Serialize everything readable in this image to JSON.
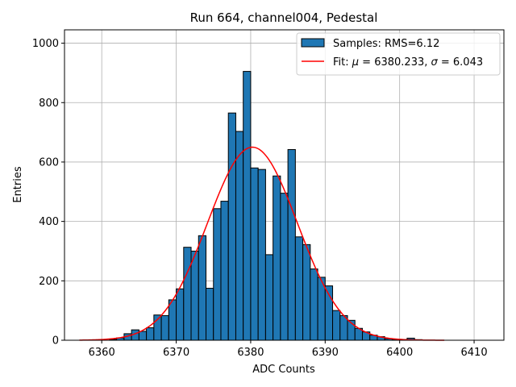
{
  "chart_data": {
    "type": "bar",
    "title": "Run 664, channel004, Pedestal",
    "xlabel": "ADC Counts",
    "ylabel": "Entries",
    "xlim": [
      6355,
      6414
    ],
    "ylim": [
      0,
      1045
    ],
    "xticks": [
      6360,
      6370,
      6380,
      6390,
      6400,
      6410
    ],
    "yticks": [
      0,
      200,
      400,
      600,
      800,
      1000
    ],
    "grid": true,
    "legend_position": "top-right",
    "bin_width": 1,
    "histogram": {
      "name": "Samples: RMS=6.12",
      "color": "#1f77b4",
      "edge_color": "#000000",
      "bin_left": [
        6361,
        6362,
        6363,
        6364,
        6365,
        6366,
        6367,
        6368,
        6369,
        6370,
        6371,
        6372,
        6373,
        6374,
        6375,
        6376,
        6377,
        6378,
        6379,
        6380,
        6381,
        6382,
        6383,
        6384,
        6385,
        6386,
        6387,
        6388,
        6389,
        6390,
        6391,
        6392,
        6393,
        6394,
        6395,
        6396,
        6397,
        6398,
        6399,
        6400,
        6401,
        6402
      ],
      "counts": [
        3,
        8,
        22,
        35,
        30,
        42,
        85,
        83,
        136,
        173,
        313,
        300,
        352,
        175,
        443,
        468,
        765,
        703,
        905,
        580,
        575,
        288,
        553,
        495,
        642,
        348,
        322,
        240,
        212,
        183,
        100,
        83,
        67,
        40,
        28,
        17,
        12,
        5,
        3,
        2,
        7,
        2
      ]
    },
    "fit": {
      "name": "Fit: $\\mu$ = 6380.233, $\\sigma$ = 6.043",
      "label_prefix": "Fit: ",
      "mu_symbol": "μ",
      "mu_text": " = 6380.233, ",
      "sigma_symbol": "σ",
      "sigma_text": " = 6.043",
      "type": "gaussian",
      "mu": 6380.233,
      "sigma": 6.043,
      "amplitude": 650,
      "x_range": [
        6357,
        6406
      ],
      "color": "#ff0000"
    },
    "legend": {
      "hist_label": "Samples: RMS=6.12"
    }
  }
}
